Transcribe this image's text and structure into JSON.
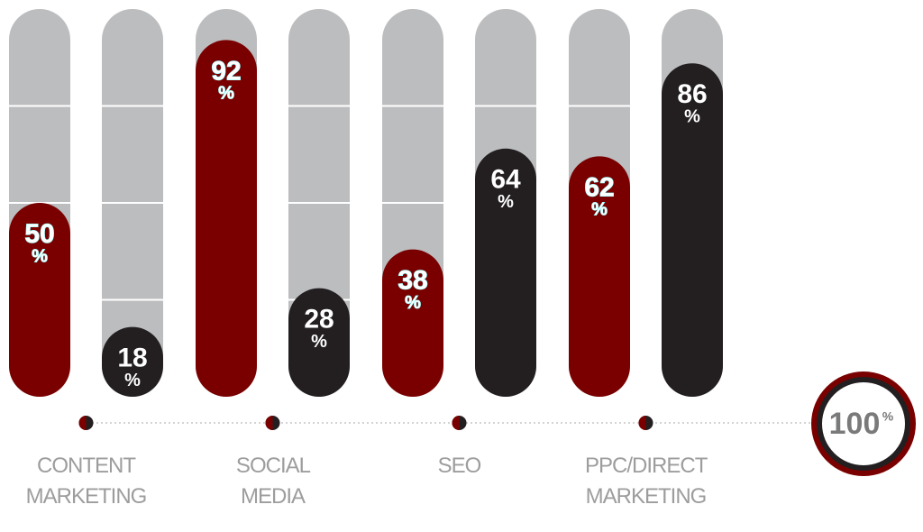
{
  "chart_data": {
    "type": "bar",
    "categories": [
      "CONTENT MARKETING",
      "SOCIAL MEDIA",
      "SEO",
      "PPC/DIRECT MARKETING"
    ],
    "series": [
      {
        "color": "#7a0000",
        "values": [
          50,
          92,
          38,
          62
        ]
      },
      {
        "color": "#231f20",
        "values": [
          18,
          28,
          64,
          86
        ]
      }
    ],
    "unit": "%",
    "ylim": [
      0,
      100
    ],
    "yticks": [
      0,
      25,
      50,
      75,
      100
    ],
    "grid": true
  }
}
